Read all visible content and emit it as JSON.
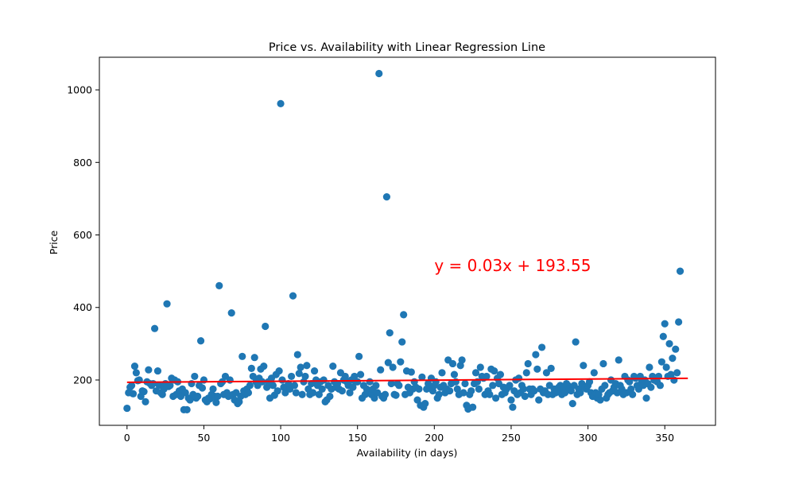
{
  "chart_data": {
    "type": "scatter",
    "title": "Price vs. Availability with Linear Regression Line",
    "xlabel": "Availability (in days)",
    "ylabel": "Price",
    "xlim": [
      -18,
      383
    ],
    "ylim": [
      75,
      1090
    ],
    "xticks": [
      0,
      50,
      100,
      150,
      200,
      250,
      300,
      350
    ],
    "yticks": [
      200,
      400,
      600,
      800,
      1000
    ],
    "grid": false,
    "point_color": "#1f77b4",
    "line_color": "#ff0000",
    "regression": {
      "slope": 0.03,
      "intercept": 193.55,
      "x_range": [
        0,
        365
      ]
    },
    "annotation": {
      "text": "y = 0.03x + 193.55",
      "x": 200,
      "y": 500,
      "color": "#ff0000"
    },
    "points": [
      [
        0,
        122
      ],
      [
        1,
        165
      ],
      [
        2,
        180
      ],
      [
        3,
        185
      ],
      [
        4,
        162
      ],
      [
        5,
        238
      ],
      [
        6,
        220
      ],
      [
        7,
        198
      ],
      [
        8,
        200
      ],
      [
        9,
        155
      ],
      [
        10,
        170
      ],
      [
        11,
        168
      ],
      [
        12,
        140
      ],
      [
        13,
        195
      ],
      [
        14,
        228
      ],
      [
        15,
        190
      ],
      [
        16,
        185
      ],
      [
        17,
        190
      ],
      [
        18,
        342
      ],
      [
        19,
        170
      ],
      [
        20,
        225
      ],
      [
        21,
        185
      ],
      [
        22,
        165
      ],
      [
        23,
        160
      ],
      [
        24,
        175
      ],
      [
        25,
        190
      ],
      [
        26,
        410
      ],
      [
        27,
        182
      ],
      [
        28,
        185
      ],
      [
        29,
        205
      ],
      [
        30,
        155
      ],
      [
        31,
        200
      ],
      [
        32,
        160
      ],
      [
        33,
        195
      ],
      [
        34,
        170
      ],
      [
        35,
        155
      ],
      [
        36,
        175
      ],
      [
        37,
        118
      ],
      [
        38,
        165
      ],
      [
        39,
        118
      ],
      [
        40,
        150
      ],
      [
        41,
        145
      ],
      [
        42,
        190
      ],
      [
        43,
        160
      ],
      [
        44,
        210
      ],
      [
        45,
        150
      ],
      [
        46,
        155
      ],
      [
        47,
        185
      ],
      [
        48,
        308
      ],
      [
        49,
        178
      ],
      [
        50,
        200
      ],
      [
        51,
        145
      ],
      [
        52,
        140
      ],
      [
        53,
        150
      ],
      [
        54,
        148
      ],
      [
        55,
        160
      ],
      [
        56,
        175
      ],
      [
        57,
        155
      ],
      [
        58,
        138
      ],
      [
        59,
        155
      ],
      [
        60,
        460
      ],
      [
        61,
        190
      ],
      [
        62,
        195
      ],
      [
        63,
        160
      ],
      [
        64,
        210
      ],
      [
        65,
        165
      ],
      [
        66,
        155
      ],
      [
        67,
        200
      ],
      [
        68,
        385
      ],
      [
        69,
        160
      ],
      [
        70,
        145
      ],
      [
        71,
        165
      ],
      [
        72,
        135
      ],
      [
        73,
        140
      ],
      [
        74,
        155
      ],
      [
        75,
        265
      ],
      [
        76,
        170
      ],
      [
        77,
        160
      ],
      [
        78,
        175
      ],
      [
        79,
        165
      ],
      [
        80,
        185
      ],
      [
        81,
        232
      ],
      [
        82,
        210
      ],
      [
        83,
        262
      ],
      [
        84,
        195
      ],
      [
        85,
        185
      ],
      [
        86,
        205
      ],
      [
        87,
        230
      ],
      [
        88,
        195
      ],
      [
        89,
        238
      ],
      [
        90,
        348
      ],
      [
        91,
        180
      ],
      [
        92,
        195
      ],
      [
        93,
        150
      ],
      [
        94,
        205
      ],
      [
        95,
        185
      ],
      [
        96,
        158
      ],
      [
        97,
        215
      ],
      [
        98,
        170
      ],
      [
        99,
        225
      ],
      [
        100,
        962
      ],
      [
        101,
        200
      ],
      [
        102,
        180
      ],
      [
        103,
        165
      ],
      [
        104,
        180
      ],
      [
        105,
        190
      ],
      [
        106,
        175
      ],
      [
        107,
        210
      ],
      [
        108,
        432
      ],
      [
        109,
        185
      ],
      [
        110,
        165
      ],
      [
        111,
        270
      ],
      [
        112,
        218
      ],
      [
        113,
        235
      ],
      [
        114,
        160
      ],
      [
        115,
        195
      ],
      [
        116,
        210
      ],
      [
        117,
        240
      ],
      [
        118,
        175
      ],
      [
        119,
        160
      ],
      [
        120,
        190
      ],
      [
        121,
        165
      ],
      [
        122,
        225
      ],
      [
        123,
        200
      ],
      [
        124,
        185
      ],
      [
        125,
        160
      ],
      [
        126,
        195
      ],
      [
        127,
        175
      ],
      [
        128,
        200
      ],
      [
        129,
        140
      ],
      [
        130,
        145
      ],
      [
        131,
        185
      ],
      [
        132,
        155
      ],
      [
        133,
        175
      ],
      [
        134,
        238
      ],
      [
        135,
        195
      ],
      [
        136,
        180
      ],
      [
        137,
        190
      ],
      [
        138,
        175
      ],
      [
        139,
        220
      ],
      [
        140,
        170
      ],
      [
        141,
        200
      ],
      [
        142,
        210
      ],
      [
        143,
        195
      ],
      [
        144,
        185
      ],
      [
        145,
        165
      ],
      [
        146,
        200
      ],
      [
        147,
        180
      ],
      [
        148,
        210
      ],
      [
        149,
        195
      ],
      [
        150,
        195
      ],
      [
        151,
        265
      ],
      [
        152,
        215
      ],
      [
        153,
        150
      ],
      [
        154,
        185
      ],
      [
        155,
        160
      ],
      [
        156,
        175
      ],
      [
        157,
        165
      ],
      [
        158,
        195
      ],
      [
        159,
        160
      ],
      [
        160,
        175
      ],
      [
        161,
        150
      ],
      [
        162,
        185
      ],
      [
        163,
        165
      ],
      [
        164,
        1045
      ],
      [
        165,
        228
      ],
      [
        166,
        155
      ],
      [
        167,
        150
      ],
      [
        168,
        160
      ],
      [
        169,
        705
      ],
      [
        170,
        248
      ],
      [
        171,
        330
      ],
      [
        172,
        190
      ],
      [
        173,
        235
      ],
      [
        174,
        160
      ],
      [
        175,
        158
      ],
      [
        176,
        190
      ],
      [
        177,
        185
      ],
      [
        178,
        250
      ],
      [
        179,
        305
      ],
      [
        180,
        380
      ],
      [
        181,
        160
      ],
      [
        182,
        225
      ],
      [
        183,
        180
      ],
      [
        184,
        165
      ],
      [
        185,
        222
      ],
      [
        186,
        175
      ],
      [
        187,
        195
      ],
      [
        188,
        180
      ],
      [
        189,
        145
      ],
      [
        190,
        175
      ],
      [
        191,
        130
      ],
      [
        192,
        208
      ],
      [
        193,
        125
      ],
      [
        194,
        135
      ],
      [
        195,
        175
      ],
      [
        196,
        190
      ],
      [
        197,
        180
      ],
      [
        198,
        205
      ],
      [
        199,
        170
      ],
      [
        200,
        185
      ],
      [
        201,
        195
      ],
      [
        202,
        150
      ],
      [
        203,
        160
      ],
      [
        204,
        180
      ],
      [
        205,
        220
      ],
      [
        206,
        185
      ],
      [
        207,
        165
      ],
      [
        208,
        175
      ],
      [
        209,
        255
      ],
      [
        210,
        170
      ],
      [
        211,
        190
      ],
      [
        212,
        245
      ],
      [
        213,
        215
      ],
      [
        214,
        195
      ],
      [
        215,
        175
      ],
      [
        216,
        160
      ],
      [
        217,
        240
      ],
      [
        218,
        255
      ],
      [
        219,
        165
      ],
      [
        220,
        190
      ],
      [
        221,
        130
      ],
      [
        222,
        120
      ],
      [
        223,
        160
      ],
      [
        224,
        170
      ],
      [
        225,
        125
      ],
      [
        226,
        190
      ],
      [
        227,
        220
      ],
      [
        228,
        195
      ],
      [
        229,
        175
      ],
      [
        230,
        235
      ],
      [
        231,
        210
      ],
      [
        232,
        205
      ],
      [
        233,
        160
      ],
      [
        234,
        210
      ],
      [
        235,
        170
      ],
      [
        236,
        160
      ],
      [
        237,
        230
      ],
      [
        238,
        185
      ],
      [
        239,
        225
      ],
      [
        240,
        150
      ],
      [
        241,
        205
      ],
      [
        242,
        190
      ],
      [
        243,
        215
      ],
      [
        244,
        160
      ],
      [
        245,
        180
      ],
      [
        246,
        165
      ],
      [
        247,
        175
      ],
      [
        248,
        180
      ],
      [
        249,
        185
      ],
      [
        250,
        145
      ],
      [
        251,
        125
      ],
      [
        252,
        170
      ],
      [
        253,
        200
      ],
      [
        254,
        160
      ],
      [
        255,
        205
      ],
      [
        256,
        165
      ],
      [
        257,
        185
      ],
      [
        258,
        175
      ],
      [
        259,
        155
      ],
      [
        260,
        220
      ],
      [
        261,
        245
      ],
      [
        262,
        175
      ],
      [
        263,
        160
      ],
      [
        264,
        175
      ],
      [
        265,
        170
      ],
      [
        266,
        270
      ],
      [
        267,
        230
      ],
      [
        268,
        145
      ],
      [
        269,
        175
      ],
      [
        270,
        290
      ],
      [
        271,
        165
      ],
      [
        272,
        170
      ],
      [
        273,
        220
      ],
      [
        274,
        160
      ],
      [
        275,
        185
      ],
      [
        276,
        232
      ],
      [
        277,
        160
      ],
      [
        278,
        175
      ],
      [
        279,
        165
      ],
      [
        280,
        170
      ],
      [
        281,
        180
      ],
      [
        282,
        185
      ],
      [
        283,
        160
      ],
      [
        284,
        175
      ],
      [
        285,
        165
      ],
      [
        286,
        190
      ],
      [
        287,
        185
      ],
      [
        288,
        175
      ],
      [
        289,
        170
      ],
      [
        290,
        135
      ],
      [
        291,
        185
      ],
      [
        292,
        305
      ],
      [
        293,
        160
      ],
      [
        294,
        175
      ],
      [
        295,
        165
      ],
      [
        296,
        190
      ],
      [
        297,
        240
      ],
      [
        298,
        180
      ],
      [
        299,
        175
      ],
      [
        300,
        185
      ],
      [
        301,
        195
      ],
      [
        302,
        165
      ],
      [
        303,
        155
      ],
      [
        304,
        220
      ],
      [
        305,
        165
      ],
      [
        306,
        150
      ],
      [
        307,
        160
      ],
      [
        308,
        145
      ],
      [
        309,
        175
      ],
      [
        310,
        245
      ],
      [
        311,
        185
      ],
      [
        312,
        150
      ],
      [
        313,
        160
      ],
      [
        314,
        165
      ],
      [
        315,
        200
      ],
      [
        316,
        170
      ],
      [
        317,
        180
      ],
      [
        318,
        190
      ],
      [
        319,
        165
      ],
      [
        320,
        255
      ],
      [
        321,
        185
      ],
      [
        322,
        175
      ],
      [
        323,
        160
      ],
      [
        324,
        210
      ],
      [
        325,
        165
      ],
      [
        326,
        200
      ],
      [
        327,
        195
      ],
      [
        328,
        175
      ],
      [
        329,
        160
      ],
      [
        330,
        210
      ],
      [
        331,
        205
      ],
      [
        332,
        185
      ],
      [
        333,
        175
      ],
      [
        334,
        210
      ],
      [
        335,
        195
      ],
      [
        336,
        185
      ],
      [
        337,
        200
      ],
      [
        338,
        150
      ],
      [
        339,
        190
      ],
      [
        340,
        235
      ],
      [
        341,
        180
      ],
      [
        342,
        210
      ],
      [
        343,
        200
      ],
      [
        344,
        205
      ],
      [
        345,
        195
      ],
      [
        346,
        210
      ],
      [
        347,
        185
      ],
      [
        348,
        250
      ],
      [
        349,
        320
      ],
      [
        350,
        355
      ],
      [
        351,
        235
      ],
      [
        352,
        210
      ],
      [
        353,
        300
      ],
      [
        354,
        215
      ],
      [
        355,
        260
      ],
      [
        356,
        200
      ],
      [
        357,
        285
      ],
      [
        358,
        220
      ],
      [
        359,
        360
      ],
      [
        360,
        500
      ]
    ]
  }
}
